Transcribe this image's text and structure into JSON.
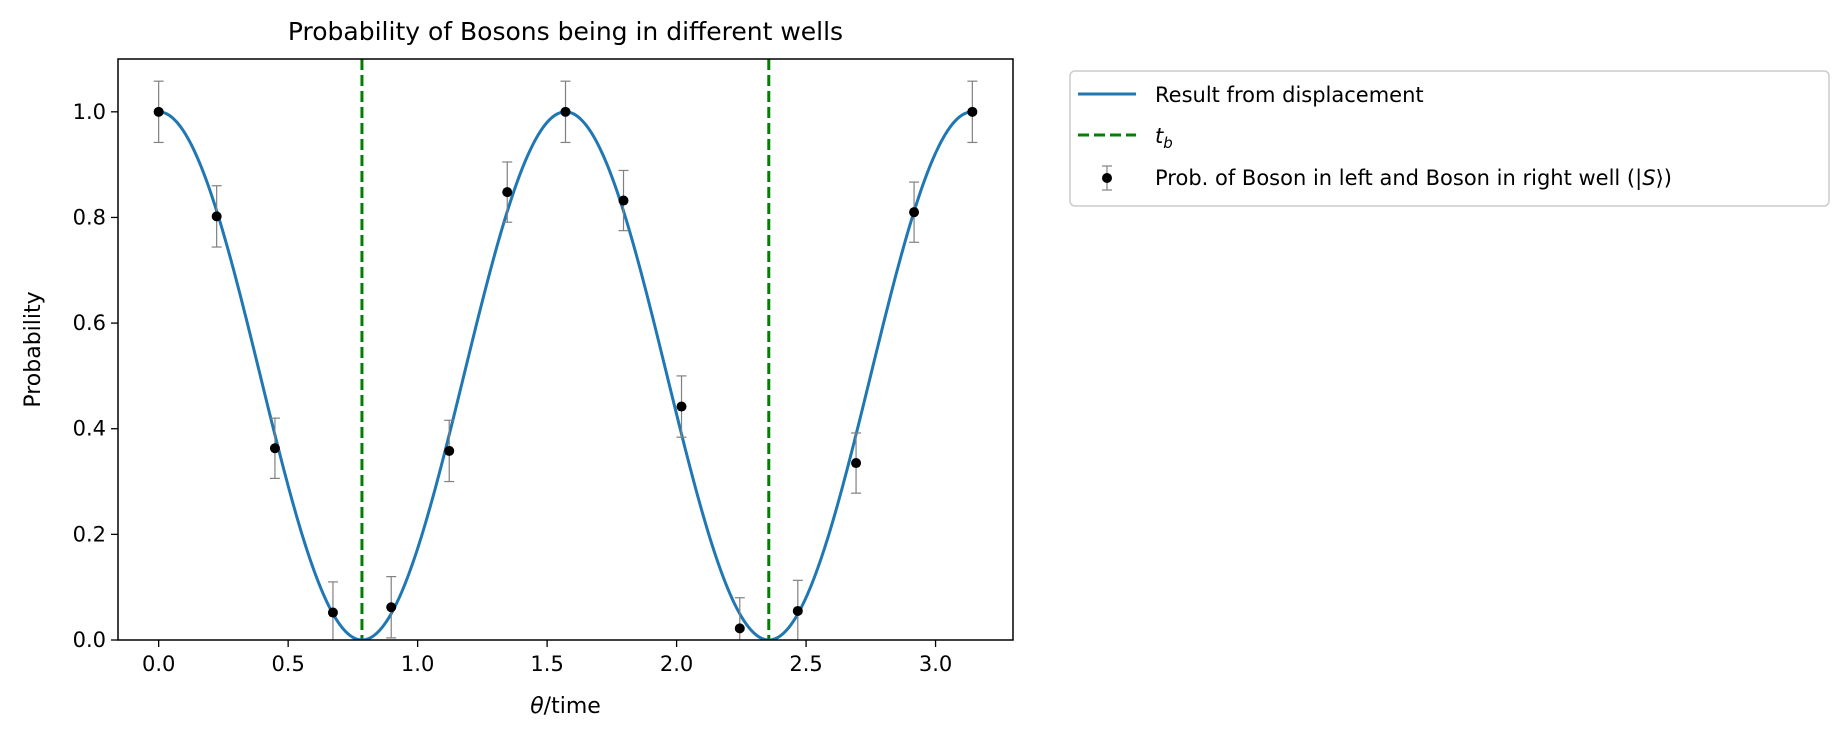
{
  "chart_data": {
    "type": "line",
    "title": "Probability of Bosons being in different wells",
    "xlabel_math": "θ",
    "xlabel_rest": "/time",
    "ylabel": "Probability",
    "xlim": [
      -0.157,
      3.299
    ],
    "ylim": [
      0.0,
      1.1
    ],
    "xticks": [
      0.0,
      0.5,
      1.0,
      1.5,
      2.0,
      2.5,
      3.0
    ],
    "xtick_labels": [
      "0.0",
      "0.5",
      "1.0",
      "1.5",
      "2.0",
      "2.5",
      "3.0"
    ],
    "yticks": [
      0.0,
      0.2,
      0.4,
      0.6,
      0.8,
      1.0
    ],
    "ytick_labels": [
      "0.0",
      "0.2",
      "0.4",
      "0.6",
      "0.8",
      "1.0"
    ],
    "grid": false,
    "legend_placement": "outside top-right",
    "series": [
      {
        "name": "Result from displacement",
        "kind": "curve",
        "function": "cos^2(2x)",
        "x_range": [
          0,
          3.1416
        ],
        "color": "#1f77b4"
      },
      {
        "name_math": "t",
        "name_sub": "b",
        "kind": "vline",
        "x": [
          0.785,
          2.356
        ],
        "color": "#008000",
        "style": "dashed"
      },
      {
        "name": "Prob. of Boson in left and Boson in right well (|S⟩)",
        "name_parts": {
          "prefix": "Prob. of Boson in left and Boson in right well (|",
          "math": "S",
          "suffix": "⟩)"
        },
        "kind": "errorbar",
        "color": "#000000",
        "errorbar_color": "#808080",
        "x": [
          0.0,
          0.224,
          0.449,
          0.673,
          0.898,
          1.122,
          1.346,
          1.571,
          1.795,
          2.019,
          2.244,
          2.468,
          2.693,
          2.917,
          3.142
        ],
        "y": [
          1.0,
          0.802,
          0.363,
          0.052,
          0.062,
          0.358,
          0.848,
          1.0,
          0.832,
          0.442,
          0.022,
          0.055,
          0.335,
          0.81,
          1.0
        ],
        "yerr": [
          0.058,
          0.058,
          0.057,
          0.058,
          0.058,
          0.058,
          0.057,
          0.058,
          0.057,
          0.058,
          0.058,
          0.058,
          0.057,
          0.057,
          0.058
        ]
      }
    ]
  }
}
